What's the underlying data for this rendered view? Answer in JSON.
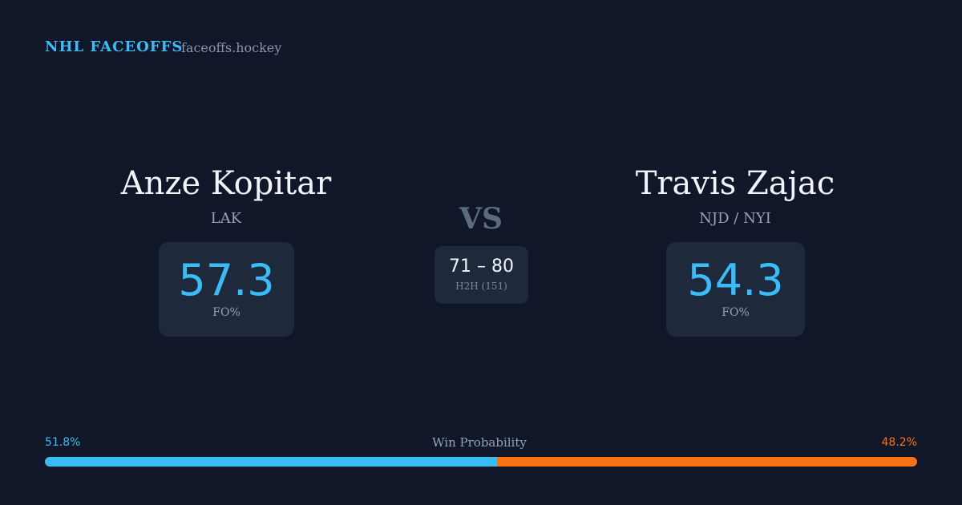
{
  "header": {
    "brand": "NHL FACEOFFS",
    "site": "faceoffs.hockey"
  },
  "players": [
    {
      "name": "Anze Kopitar",
      "team": "LAK",
      "fo_pct": 57.3,
      "fo_label": "FO%"
    },
    {
      "name": "Travis Zajac",
      "team": "NJD / NYI",
      "fo_pct": 54.3,
      "fo_label": "FO%"
    }
  ],
  "vs": "VS",
  "h2h": {
    "score": "71 – 80",
    "label": "H2H (151)"
  },
  "win_probability": {
    "label": "Win Probability",
    "values": [
      51.8,
      48.2
    ],
    "value_labels": [
      "51.8%",
      "48.2%"
    ],
    "colors": [
      "#38bdf8",
      "#f97316"
    ]
  }
}
